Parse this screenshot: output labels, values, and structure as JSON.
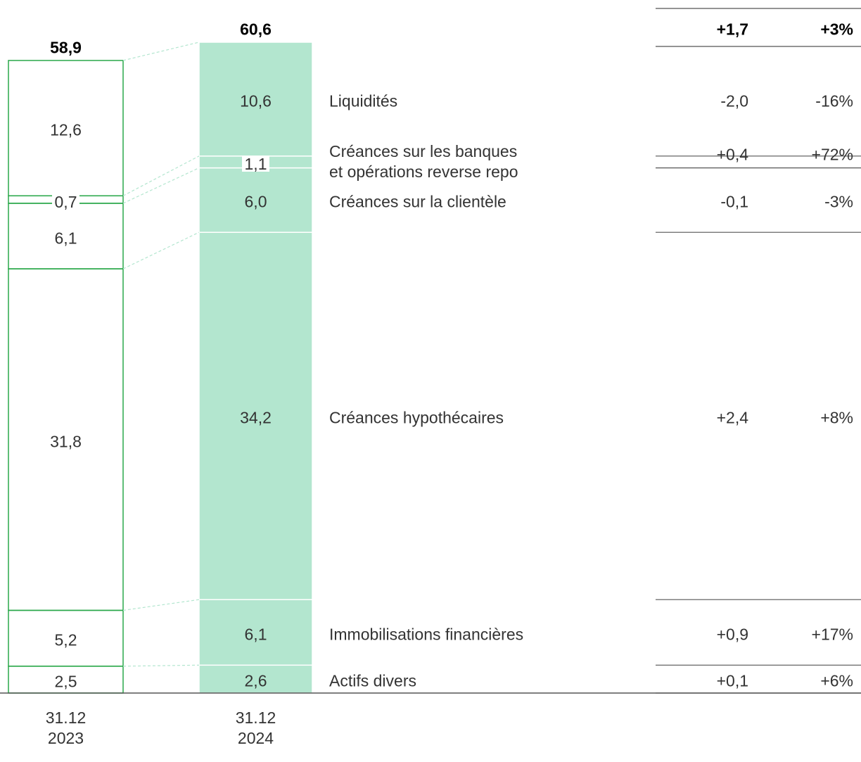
{
  "chart_data": {
    "type": "bar",
    "stacked": true,
    "categories": [
      "31.12\n2023",
      "31.12\n2024"
    ],
    "ylim": [
      0,
      60.6
    ],
    "series": [
      {
        "name": "Actifs divers",
        "values": [
          2.5,
          2.6
        ],
        "value_labels": [
          "2,5",
          "2,6"
        ],
        "change": "+0,1",
        "change_pct": "+6%"
      },
      {
        "name": "Immobilisations financières",
        "values": [
          5.2,
          6.1
        ],
        "value_labels": [
          "5,2",
          "6,1"
        ],
        "change": "+0,9",
        "change_pct": "+17%"
      },
      {
        "name": "Créances hypothécaires",
        "values": [
          31.8,
          34.2
        ],
        "value_labels": [
          "31,8",
          "34,2"
        ],
        "change": "+2,4",
        "change_pct": "+8%"
      },
      {
        "name": "Créances sur la clientèle",
        "values": [
          6.1,
          6.0
        ],
        "value_labels": [
          "6,1",
          "6,0"
        ],
        "change": "-0,1",
        "change_pct": "-3%"
      },
      {
        "name": "Créances sur les banques\net opérations reverse repo",
        "values": [
          0.7,
          1.1
        ],
        "value_labels": [
          "0,7",
          "1,1"
        ],
        "change": "+0,4",
        "change_pct": "+72%"
      },
      {
        "name": "Liquidités",
        "values": [
          12.6,
          10.6
        ],
        "value_labels": [
          "12,6",
          "10,6"
        ],
        "change": "-2,0",
        "change_pct": "-16%"
      }
    ],
    "totals": [
      58.9,
      60.6
    ],
    "total_labels": [
      "58,9",
      "60,6"
    ],
    "total_change": "+1,7",
    "total_change_pct": "+3%",
    "colors": {
      "outline": "#2aa84a",
      "fill": "#b3e6cf"
    }
  }
}
